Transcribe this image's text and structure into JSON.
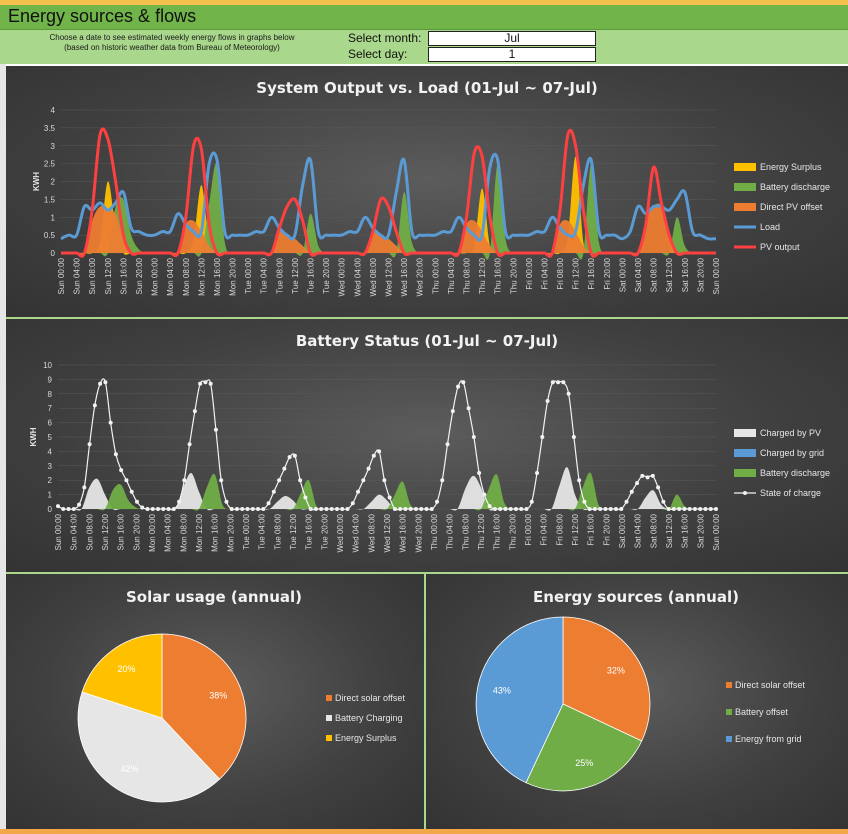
{
  "header": {
    "title": "Energy sources & flows"
  },
  "controls": {
    "instructions_line1": "Choose a date to see estimated weekly energy flows in graphs below",
    "instructions_line2": "(based on historic weather data from Bureau of Meteorology)",
    "month_label": "Select month:",
    "month_value": "Jul",
    "day_label": "Select day:",
    "day_value": "1"
  },
  "colors": {
    "surplus": "#ffc000",
    "battery_discharge": "#70ad47",
    "direct_pv": "#ed7d31",
    "load": "#5b9bd5",
    "pv_output": "#ff4040",
    "charged_pv": "#e7e6e6",
    "charged_grid": "#5b9bd5",
    "soc": "#f2f2f2"
  },
  "x_ticks": [
    "Sun 00:00",
    "Sun 04:00",
    "Sun 08:00",
    "Sun 12:00",
    "Sun 16:00",
    "Sun 20:00",
    "Mon 00:00",
    "Mon 04:00",
    "Mon 08:00",
    "Mon 12:00",
    "Mon 16:00",
    "Mon 20:00",
    "Tue 00:00",
    "Tue 04:00",
    "Tue 08:00",
    "Tue 12:00",
    "Tue 16:00",
    "Tue 20:00",
    "Wed 00:00",
    "Wed 04:00",
    "Wed 08:00",
    "Wed 12:00",
    "Wed 16:00",
    "Wed 20:00",
    "Thu 00:00",
    "Thu 04:00",
    "Thu 08:00",
    "Thu 12:00",
    "Thu 16:00",
    "Thu 20:00",
    "Fri 00:00",
    "Fri 04:00",
    "Fri 08:00",
    "Fri 12:00",
    "Fri 16:00",
    "Fri 20:00",
    "Sat 00:00",
    "Sat 04:00",
    "Sat 08:00",
    "Sat 12:00",
    "Sat 16:00",
    "Sat 20:00",
    "Sun 00:00"
  ],
  "chart_data": [
    {
      "type": "line",
      "title": "System Output vs. Load (01-Jul ~ 07-Jul)",
      "ylabel": "KWH",
      "ylim": [
        0,
        4
      ],
      "yticks": [
        "0",
        "0.5",
        "1",
        "1.5",
        "2",
        "2.5",
        "3",
        "3.5",
        "4"
      ],
      "step_hours": 2,
      "series": [
        {
          "name": "Energy Surplus",
          "kind": "area",
          "color_key": "surplus",
          "values": [
            0,
            0,
            0,
            0,
            0,
            0.3,
            2.0,
            0.7,
            0,
            0,
            0,
            0,
            0,
            0,
            0,
            0,
            0,
            0.4,
            1.9,
            0.3,
            0,
            0,
            0,
            0,
            0,
            0,
            0,
            0,
            0,
            0,
            0,
            0,
            0,
            0,
            0,
            0,
            0,
            0,
            0,
            0,
            0,
            0,
            0,
            0,
            0,
            0,
            0,
            0,
            0,
            0,
            0,
            0,
            0,
            0.2,
            1.8,
            0.2,
            0,
            0,
            0,
            0,
            0,
            0,
            0,
            0,
            0,
            0.4,
            2.7,
            0.3,
            0,
            0,
            0,
            0,
            0,
            0,
            0,
            0,
            0,
            0,
            0,
            0,
            0,
            0,
            0,
            0,
            0
          ]
        },
        {
          "name": "Battery discharge",
          "kind": "area",
          "color_key": "battery_discharge",
          "values": [
            0,
            0,
            0,
            0,
            0,
            0,
            0,
            1.3,
            1.5,
            0.5,
            0.1,
            0,
            0,
            0,
            0,
            0,
            0,
            0,
            0,
            1.4,
            2.5,
            0.3,
            0,
            0,
            0,
            0,
            0,
            0,
            0,
            0,
            0,
            0,
            1.1,
            0.2,
            0,
            0,
            0,
            0,
            0,
            0,
            0,
            0,
            0,
            0,
            1.7,
            0.3,
            0,
            0,
            0,
            0,
            0,
            0,
            0,
            0,
            0,
            0,
            2.5,
            0.4,
            0,
            0,
            0,
            0,
            0,
            0,
            0,
            0,
            0,
            0,
            2.5,
            0.3,
            0,
            0,
            0,
            0,
            0,
            0,
            0,
            0,
            0,
            1.0,
            0.2,
            0,
            0,
            0,
            0
          ]
        },
        {
          "name": "Direct PV offset",
          "kind": "area",
          "color_key": "direct_pv",
          "values": [
            0,
            0,
            0,
            0,
            0.9,
            1.3,
            1.2,
            1.1,
            0.4,
            0,
            0,
            0,
            0,
            0,
            0,
            0,
            0.8,
            0.9,
            0.6,
            0.2,
            0,
            0,
            0,
            0,
            0,
            0,
            0,
            0,
            0.6,
            0.5,
            0.4,
            0.2,
            0,
            0,
            0,
            0,
            0,
            0,
            0,
            0,
            0.6,
            0.5,
            0.4,
            0.2,
            0,
            0,
            0,
            0,
            0,
            0,
            0,
            0,
            0.8,
            0.9,
            0.6,
            0.2,
            0,
            0,
            0,
            0,
            0,
            0,
            0,
            0,
            0.8,
            0.9,
            0.6,
            0.2,
            0,
            0,
            0,
            0,
            0,
            0,
            0,
            0.9,
            1.3,
            1.3,
            0.4,
            0,
            0,
            0,
            0,
            0,
            0
          ]
        },
        {
          "name": "Load",
          "kind": "line",
          "color_key": "load",
          "values": [
            0.4,
            0.5,
            0.5,
            1.3,
            1.2,
            1.4,
            1.2,
            1.4,
            1.7,
            0.7,
            0.6,
            0.5,
            0.5,
            0.6,
            0.6,
            1.1,
            0.8,
            0.6,
            0.6,
            2.5,
            2.6,
            0.6,
            0.5,
            0.5,
            0.5,
            0.6,
            0.6,
            1.0,
            0.7,
            0.5,
            0.5,
            1.9,
            2.6,
            0.6,
            0.5,
            0.5,
            0.5,
            0.6,
            0.6,
            1.0,
            0.7,
            0.5,
            0.5,
            1.7,
            2.6,
            0.6,
            0.5,
            0.5,
            0.5,
            0.6,
            0.6,
            1.0,
            0.7,
            0.5,
            0.5,
            2.4,
            2.6,
            0.6,
            0.5,
            0.5,
            0.5,
            0.6,
            0.6,
            1.0,
            0.7,
            0.5,
            0.6,
            1.9,
            2.6,
            0.6,
            0.5,
            0.5,
            0.4,
            0.6,
            1.3,
            1.1,
            1.3,
            1.3,
            1.2,
            1.5,
            1.7,
            0.6,
            0.5,
            0.4,
            0.4
          ]
        },
        {
          "name": "PV output",
          "kind": "line",
          "color_key": "pv_output",
          "values": [
            0,
            0,
            0,
            0,
            1.2,
            3.3,
            3.2,
            2.0,
            0.5,
            0,
            0,
            0,
            0,
            0,
            0,
            0,
            1.0,
            3.0,
            2.9,
            0.8,
            0,
            0,
            0,
            0,
            0,
            0,
            0,
            0,
            0.7,
            1.3,
            1.5,
            0.9,
            0,
            0,
            0,
            0,
            0,
            0,
            0,
            0,
            0.6,
            1.5,
            1.3,
            0.6,
            0,
            0,
            0,
            0,
            0,
            0,
            0,
            0,
            1.0,
            2.8,
            2.7,
            1.0,
            0,
            0,
            0,
            0,
            0,
            0,
            0,
            0,
            1.2,
            3.3,
            3.0,
            1.2,
            0,
            0,
            0,
            0,
            0,
            0,
            0,
            0.8,
            2.4,
            1.4,
            0.5,
            0,
            0,
            0,
            0,
            0,
            0
          ]
        }
      ]
    },
    {
      "type": "line",
      "title": "Battery Status (01-Jul ~ 07-Jul)",
      "ylabel": "KWH",
      "ylim": [
        0,
        10
      ],
      "yticks": [
        "0",
        "1",
        "2",
        "3",
        "4",
        "5",
        "6",
        "7",
        "8",
        "9",
        "10"
      ],
      "step_hours": 2,
      "series": [
        {
          "name": "Charged by PV",
          "kind": "area",
          "color_key": "charged_pv",
          "values": [
            0,
            0,
            0,
            0,
            1.5,
            2.1,
            1.0,
            0,
            0,
            0,
            0,
            0,
            0,
            0,
            0,
            0,
            1.5,
            2.5,
            1.2,
            0,
            0,
            0,
            0,
            0,
            0,
            0,
            0,
            0,
            0.5,
            0.9,
            0.6,
            0,
            0,
            0,
            0,
            0,
            0,
            0,
            0,
            0,
            0.5,
            1.0,
            0.6,
            0,
            0,
            0,
            0,
            0,
            0,
            0,
            0,
            0,
            1.4,
            2.3,
            1.5,
            0,
            0,
            0,
            0,
            0,
            0,
            0,
            0,
            0,
            1.6,
            2.9,
            1.0,
            0,
            0,
            0,
            0,
            0,
            0,
            0,
            0,
            0.8,
            1.3,
            0.3,
            0,
            0,
            0,
            0,
            0,
            0,
            0
          ]
        },
        {
          "name": "Charged by grid",
          "kind": "area",
          "color_key": "charged_grid",
          "values": [
            0,
            0,
            0,
            0,
            0,
            0,
            0,
            0,
            0,
            0,
            0,
            0,
            0,
            0,
            0,
            0,
            0,
            0,
            0,
            0,
            0,
            0,
            0,
            0,
            0,
            0,
            0,
            0,
            0,
            0,
            0,
            0,
            0,
            0,
            0,
            0,
            0,
            0,
            0,
            0,
            0,
            0,
            0,
            0,
            0,
            0,
            0,
            0,
            0,
            0,
            0,
            0,
            0,
            0,
            0,
            0,
            0,
            0,
            0,
            0,
            0,
            0,
            0,
            0,
            0,
            0,
            0,
            0,
            0,
            0,
            0,
            0,
            0,
            0,
            0,
            0,
            0,
            0,
            0,
            0,
            0,
            0,
            0,
            0,
            0
          ]
        },
        {
          "name": "Battery discharge",
          "kind": "area",
          "color_key": "battery_discharge",
          "values": [
            0,
            0,
            0,
            0,
            0,
            0,
            0,
            1.3,
            1.7,
            0.6,
            0.1,
            0,
            0,
            0,
            0,
            0,
            0,
            0,
            0,
            1.5,
            2.4,
            0.3,
            0,
            0,
            0,
            0,
            0,
            0,
            0,
            0,
            0,
            1.1,
            2.0,
            0.2,
            0,
            0,
            0,
            0,
            0,
            0,
            0,
            0,
            0,
            1.0,
            1.9,
            0.3,
            0,
            0,
            0,
            0,
            0,
            0,
            0,
            0,
            0,
            1.4,
            2.4,
            0.4,
            0,
            0,
            0,
            0,
            0,
            0,
            0,
            0,
            0,
            1.5,
            2.5,
            0.3,
            0,
            0,
            0,
            0,
            0,
            0,
            0,
            0,
            0,
            1.0,
            0.2,
            0,
            0,
            0,
            0
          ]
        },
        {
          "name": "State of charge",
          "kind": "soc",
          "color_key": "soc",
          "values": [
            0.2,
            0,
            0,
            0,
            0.3,
            1.5,
            4.5,
            7.2,
            8.7,
            8.8,
            6.0,
            3.8,
            2.7,
            2.0,
            1.2,
            0.5,
            0.1,
            0,
            0,
            0,
            0,
            0,
            0,
            0.5,
            2.0,
            4.5,
            6.8,
            8.7,
            8.8,
            8.7,
            5.5,
            2.0,
            0.5,
            0,
            0,
            0,
            0,
            0,
            0,
            0,
            0.4,
            1.2,
            2.0,
            2.8,
            3.6,
            3.7,
            2.0,
            0.8,
            0,
            0,
            0,
            0,
            0,
            0,
            0,
            0,
            0.4,
            1.2,
            2.0,
            2.8,
            3.7,
            4.0,
            2.0,
            0.8,
            0,
            0,
            0,
            0,
            0,
            0,
            0,
            0,
            0.5,
            2.0,
            4.5,
            6.8,
            8.5,
            8.8,
            7.0,
            5.0,
            2.5,
            1.0,
            0.2,
            0,
            0,
            0,
            0,
            0,
            0,
            0,
            0.5,
            2.5,
            5.0,
            7.5,
            8.8,
            8.8,
            8.8,
            8.0,
            5.0,
            2.0,
            0.5,
            0,
            0,
            0,
            0,
            0,
            0,
            0,
            0.5,
            1.2,
            1.8,
            2.3,
            2.2,
            2.3,
            1.5,
            0.5,
            0,
            0,
            0,
            0,
            0,
            0,
            0,
            0,
            0,
            0
          ]
        }
      ]
    },
    {
      "type": "pie",
      "title": "Solar usage (annual)",
      "slices": [
        {
          "name": "Direct solar offset",
          "value": 38,
          "label": "38%",
          "color": "#ed7d31"
        },
        {
          "name": "Battery Charging",
          "value": 42,
          "label": "42%",
          "color": "#e7e6e6"
        },
        {
          "name": "Energy Surplus",
          "value": 20,
          "label": "20%",
          "color": "#ffc000"
        }
      ]
    },
    {
      "type": "pie",
      "title": "Energy sources (annual)",
      "slices": [
        {
          "name": "Direct solar offset",
          "value": 32,
          "label": "32%",
          "color": "#ed7d31"
        },
        {
          "name": "Battery offset",
          "value": 25,
          "label": "25%",
          "color": "#70ad47"
        },
        {
          "name": "Energy from grid",
          "value": 43,
          "label": "43%",
          "color": "#5b9bd5"
        }
      ]
    }
  ]
}
